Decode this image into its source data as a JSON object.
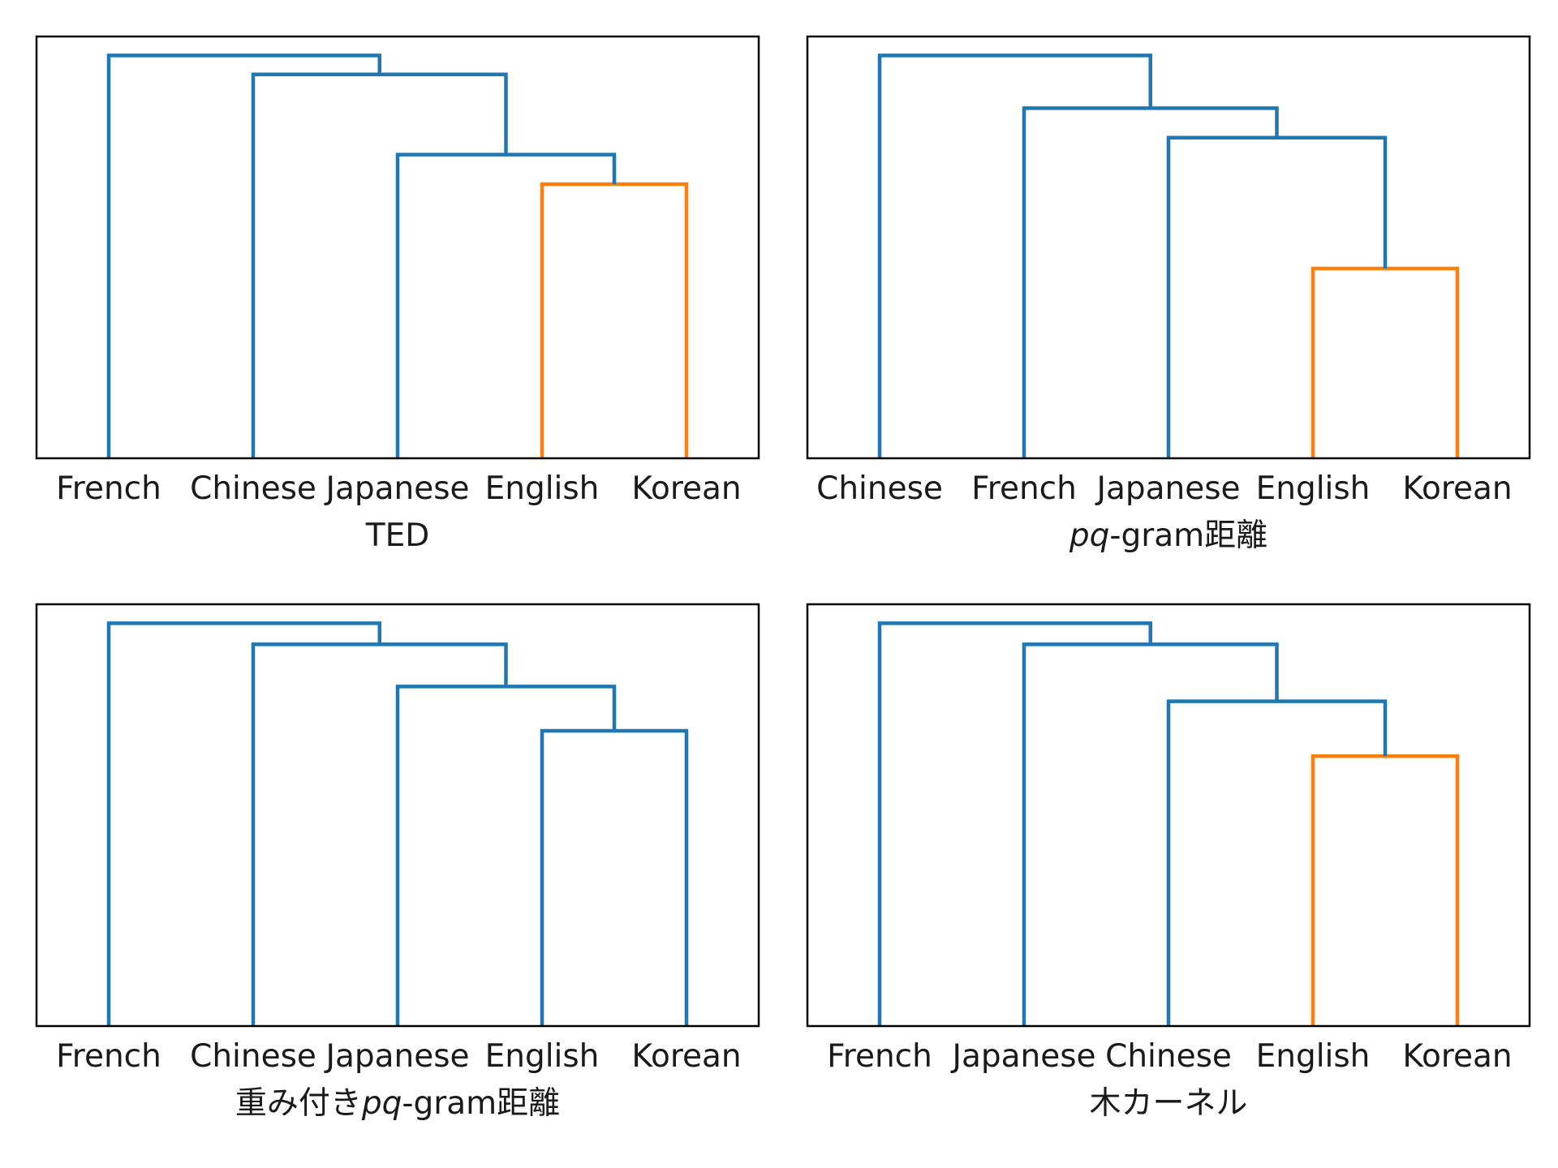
{
  "colors": {
    "cluster_color": "#ff7f0e",
    "above_threshold_color": "#1f77b4",
    "frame": "#000000",
    "text": "#1a1a1a"
  },
  "chart_data": [
    {
      "type": "dendrogram",
      "title": "",
      "xlabel_parts": [
        {
          "text": "TED",
          "italic": false
        }
      ],
      "ylabel": "",
      "leaves": [
        "French",
        "Chinese",
        "Japanese",
        "English",
        "Korean"
      ],
      "ylim": [
        0,
        1
      ],
      "grid": false,
      "links": [
        {
          "left_pos": 3,
          "right_pos": 4,
          "height": 0.65,
          "left_height": 0,
          "right_height": 0,
          "color": "cluster_color"
        },
        {
          "left_pos": 2,
          "right_pos": 3.5,
          "height": 0.72,
          "left_height": 0,
          "right_height": 0.65,
          "color": "above_threshold_color"
        },
        {
          "left_pos": 1,
          "right_pos": 2.75,
          "height": 0.91,
          "left_height": 0,
          "right_height": 0.72,
          "color": "above_threshold_color"
        },
        {
          "left_pos": 0,
          "right_pos": 1.875,
          "height": 0.955,
          "left_height": 0,
          "right_height": 0.91,
          "color": "above_threshold_color"
        }
      ]
    },
    {
      "type": "dendrogram",
      "title": "",
      "xlabel_parts": [
        {
          "text": "pq",
          "italic": true
        },
        {
          "text": "-gram距離",
          "italic": false
        }
      ],
      "ylabel": "",
      "leaves": [
        "Chinese",
        "French",
        "Japanese",
        "English",
        "Korean"
      ],
      "ylim": [
        0,
        1
      ],
      "grid": false,
      "links": [
        {
          "left_pos": 3,
          "right_pos": 4,
          "height": 0.45,
          "left_height": 0,
          "right_height": 0,
          "color": "cluster_color"
        },
        {
          "left_pos": 2,
          "right_pos": 3.5,
          "height": 0.76,
          "left_height": 0,
          "right_height": 0.45,
          "color": "above_threshold_color"
        },
        {
          "left_pos": 1,
          "right_pos": 2.75,
          "height": 0.83,
          "left_height": 0,
          "right_height": 0.76,
          "color": "above_threshold_color"
        },
        {
          "left_pos": 0,
          "right_pos": 1.875,
          "height": 0.955,
          "left_height": 0,
          "right_height": 0.83,
          "color": "above_threshold_color"
        }
      ]
    },
    {
      "type": "dendrogram",
      "title": "",
      "xlabel_parts": [
        {
          "text": "重み付き",
          "italic": false
        },
        {
          "text": "pq",
          "italic": true
        },
        {
          "text": "-gram距離",
          "italic": false
        }
      ],
      "ylabel": "",
      "leaves": [
        "French",
        "Chinese",
        "Japanese",
        "English",
        "Korean"
      ],
      "ylim": [
        0,
        1
      ],
      "grid": false,
      "links": [
        {
          "left_pos": 3,
          "right_pos": 4,
          "height": 0.7,
          "left_height": 0,
          "right_height": 0,
          "color": "above_threshold_color"
        },
        {
          "left_pos": 2,
          "right_pos": 3.5,
          "height": 0.805,
          "left_height": 0,
          "right_height": 0.7,
          "color": "above_threshold_color"
        },
        {
          "left_pos": 1,
          "right_pos": 2.75,
          "height": 0.905,
          "left_height": 0,
          "right_height": 0.805,
          "color": "above_threshold_color"
        },
        {
          "left_pos": 0,
          "right_pos": 1.875,
          "height": 0.955,
          "left_height": 0,
          "right_height": 0.905,
          "color": "above_threshold_color"
        }
      ]
    },
    {
      "type": "dendrogram",
      "title": "",
      "xlabel_parts": [
        {
          "text": "木カーネル",
          "italic": false
        }
      ],
      "ylabel": "",
      "leaves": [
        "French",
        "Japanese",
        "Chinese",
        "English",
        "Korean"
      ],
      "ylim": [
        0,
        1
      ],
      "grid": false,
      "links": [
        {
          "left_pos": 3,
          "right_pos": 4,
          "height": 0.64,
          "left_height": 0,
          "right_height": 0,
          "color": "cluster_color"
        },
        {
          "left_pos": 2,
          "right_pos": 3.5,
          "height": 0.77,
          "left_height": 0,
          "right_height": 0.64,
          "color": "above_threshold_color"
        },
        {
          "left_pos": 1,
          "right_pos": 2.75,
          "height": 0.905,
          "left_height": 0,
          "right_height": 0.77,
          "color": "above_threshold_color"
        },
        {
          "left_pos": 0,
          "right_pos": 1.875,
          "height": 0.955,
          "left_height": 0,
          "right_height": 0.905,
          "color": "above_threshold_color"
        }
      ]
    }
  ]
}
